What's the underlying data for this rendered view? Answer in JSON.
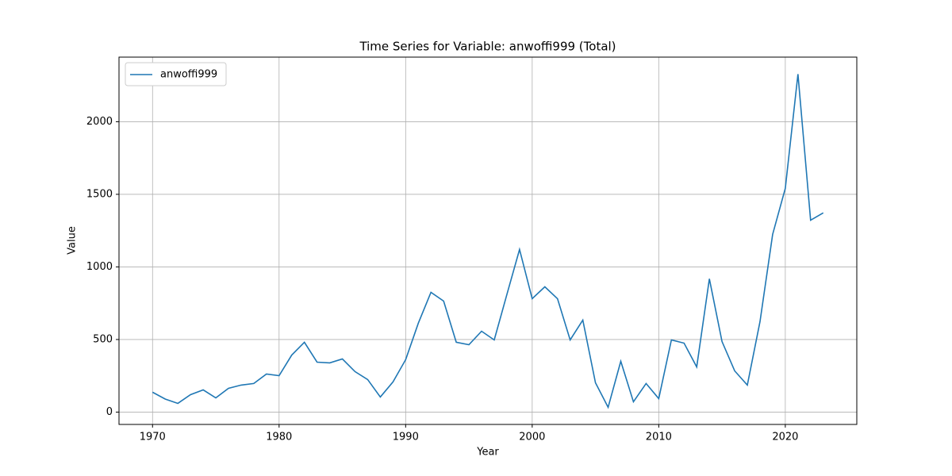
{
  "chart_data": {
    "type": "line",
    "title": "Time Series for Variable: anwoffi999 (Total)",
    "x_label": "Year",
    "y_label": "Value",
    "x": [
      1970,
      1971,
      1972,
      1973,
      1974,
      1975,
      1976,
      1977,
      1978,
      1979,
      1980,
      1981,
      1982,
      1983,
      1984,
      1985,
      1986,
      1987,
      1988,
      1989,
      1990,
      1991,
      1992,
      1993,
      1994,
      1995,
      1996,
      1997,
      1998,
      1999,
      2000,
      2001,
      2002,
      2003,
      2004,
      2005,
      2006,
      2007,
      2008,
      2009,
      2010,
      2011,
      2012,
      2013,
      2014,
      2015,
      2016,
      2017,
      2018,
      2019,
      2020,
      2021,
      2022,
      2023
    ],
    "series": [
      {
        "name": "anwoffi999",
        "color": "#1f77b4",
        "values": [
          137,
          90,
          60,
          120,
          153,
          98,
          164,
          186,
          197,
          262,
          251,
          393,
          481,
          344,
          339,
          366,
          279,
          224,
          104,
          208,
          361,
          612,
          825,
          765,
          481,
          464,
          557,
          497,
          810,
          1120,
          781,
          863,
          781,
          497,
          634,
          202,
          33,
          350,
          71,
          197,
          93,
          497,
          475,
          311,
          918,
          486,
          284,
          186,
          623,
          1224,
          1541,
          2328,
          1322,
          1372
        ]
      }
    ],
    "xlim": [
      1967.35,
      2025.65
    ],
    "xticks": [
      1970,
      1980,
      1990,
      2000,
      2010,
      2020
    ],
    "ylim": [
      -85,
      2445
    ],
    "yticks": [
      0,
      500,
      1000,
      1500,
      2000
    ],
    "grid": true,
    "legend": "upper left"
  }
}
